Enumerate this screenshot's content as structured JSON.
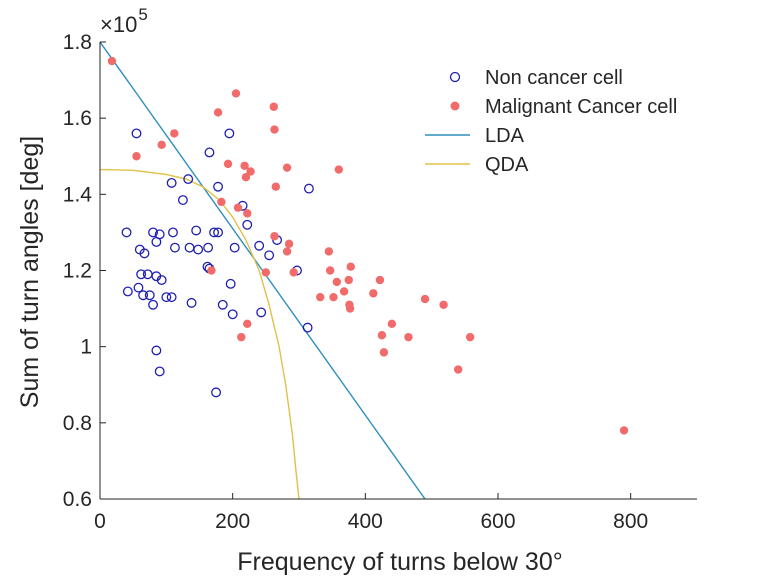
{
  "chart_data": {
    "type": "scatter",
    "title": "",
    "xlabel": "Frequency of turns below 30°",
    "ylabel": "Sum of turn angles [deg]",
    "y_multiplier_label": "×10",
    "y_multiplier_exponent": "5",
    "xlim": [
      0,
      900
    ],
    "ylim": [
      0.6,
      1.8
    ],
    "xticks": [
      0,
      200,
      400,
      600,
      800
    ],
    "xtick_labels": [
      "0",
      "200",
      "400",
      "600",
      "800"
    ],
    "yticks": [
      0.6,
      0.8,
      1.0,
      1.2,
      1.4,
      1.6,
      1.8
    ],
    "ytick_labels": [
      "0.6",
      "0.8",
      "1",
      "1.2",
      "1.4",
      "1.6",
      "1.8"
    ],
    "grid": false,
    "legend_position": "top-right",
    "colors": {
      "non_cancer": "#1f1fb4",
      "malignant": "#f26b6b",
      "lda": "#2e8fbf",
      "qda": "#e0c24a",
      "axis": "#262626"
    },
    "series": [
      {
        "name": "Non cancer cell",
        "marker": "open-circle",
        "points": [
          [
            55,
            1.56
          ],
          [
            195,
            1.56
          ],
          [
            165,
            1.51
          ],
          [
            315,
            1.415
          ],
          [
            108,
            1.43
          ],
          [
            133,
            1.44
          ],
          [
            178,
            1.42
          ],
          [
            125,
            1.385
          ],
          [
            215,
            1.37
          ],
          [
            40,
            1.3
          ],
          [
            80,
            1.3
          ],
          [
            90,
            1.295
          ],
          [
            110,
            1.3
          ],
          [
            145,
            1.305
          ],
          [
            172,
            1.3
          ],
          [
            178,
            1.3
          ],
          [
            222,
            1.32
          ],
          [
            85,
            1.275
          ],
          [
            60,
            1.255
          ],
          [
            67,
            1.245
          ],
          [
            113,
            1.26
          ],
          [
            135,
            1.26
          ],
          [
            148,
            1.255
          ],
          [
            163,
            1.26
          ],
          [
            203,
            1.26
          ],
          [
            240,
            1.265
          ],
          [
            267,
            1.28
          ],
          [
            255,
            1.24
          ],
          [
            162,
            1.21
          ],
          [
            165,
            1.205
          ],
          [
            62,
            1.19
          ],
          [
            72,
            1.19
          ],
          [
            85,
            1.185
          ],
          [
            93,
            1.175
          ],
          [
            197,
            1.165
          ],
          [
            297,
            1.2
          ],
          [
            42,
            1.145
          ],
          [
            58,
            1.155
          ],
          [
            65,
            1.135
          ],
          [
            75,
            1.135
          ],
          [
            100,
            1.13
          ],
          [
            108,
            1.13
          ],
          [
            80,
            1.11
          ],
          [
            138,
            1.115
          ],
          [
            185,
            1.11
          ],
          [
            200,
            1.085
          ],
          [
            243,
            1.09
          ],
          [
            313,
            1.05
          ],
          [
            85,
            0.99
          ],
          [
            90,
            0.935
          ],
          [
            175,
            0.88
          ]
        ]
      },
      {
        "name": "Malignant Cancer cell",
        "marker": "filled-circle",
        "points": [
          [
            18,
            1.75
          ],
          [
            205,
            1.665
          ],
          [
            262,
            1.63
          ],
          [
            178,
            1.615
          ],
          [
            263,
            1.57
          ],
          [
            112,
            1.56
          ],
          [
            93,
            1.53
          ],
          [
            55,
            1.5
          ],
          [
            193,
            1.48
          ],
          [
            218,
            1.475
          ],
          [
            227,
            1.46
          ],
          [
            282,
            1.47
          ],
          [
            360,
            1.465
          ],
          [
            220,
            1.445
          ],
          [
            265,
            1.42
          ],
          [
            183,
            1.38
          ],
          [
            208,
            1.365
          ],
          [
            222,
            1.35
          ],
          [
            263,
            1.29
          ],
          [
            285,
            1.27
          ],
          [
            282,
            1.25
          ],
          [
            345,
            1.25
          ],
          [
            250,
            1.195
          ],
          [
            292,
            1.195
          ],
          [
            347,
            1.2
          ],
          [
            378,
            1.21
          ],
          [
            168,
            1.2
          ],
          [
            357,
            1.17
          ],
          [
            375,
            1.175
          ],
          [
            422,
            1.175
          ],
          [
            332,
            1.13
          ],
          [
            352,
            1.13
          ],
          [
            368,
            1.145
          ],
          [
            376,
            1.11
          ],
          [
            377,
            1.1
          ],
          [
            412,
            1.14
          ],
          [
            490,
            1.125
          ],
          [
            518,
            1.11
          ],
          [
            440,
            1.06
          ],
          [
            425,
            1.03
          ],
          [
            465,
            1.025
          ],
          [
            558,
            1.025
          ],
          [
            213,
            1.025
          ],
          [
            222,
            1.06
          ],
          [
            428,
            0.985
          ],
          [
            540,
            0.94
          ],
          [
            790,
            0.78
          ]
        ]
      }
    ],
    "decision_boundaries": [
      {
        "name": "LDA",
        "type": "line",
        "points": [
          [
            0,
            1.8
          ],
          [
            490,
            0.6
          ]
        ]
      },
      {
        "name": "QDA",
        "type": "curve",
        "points": [
          [
            0,
            1.465
          ],
          [
            50,
            1.463
          ],
          [
            100,
            1.452
          ],
          [
            130,
            1.44
          ],
          [
            155,
            1.42
          ],
          [
            180,
            1.385
          ],
          [
            200,
            1.34
          ],
          [
            220,
            1.28
          ],
          [
            240,
            1.2
          ],
          [
            255,
            1.11
          ],
          [
            270,
            1.0
          ],
          [
            280,
            0.9
          ],
          [
            290,
            0.77
          ],
          [
            295,
            0.68
          ],
          [
            300,
            0.6
          ]
        ]
      }
    ]
  }
}
